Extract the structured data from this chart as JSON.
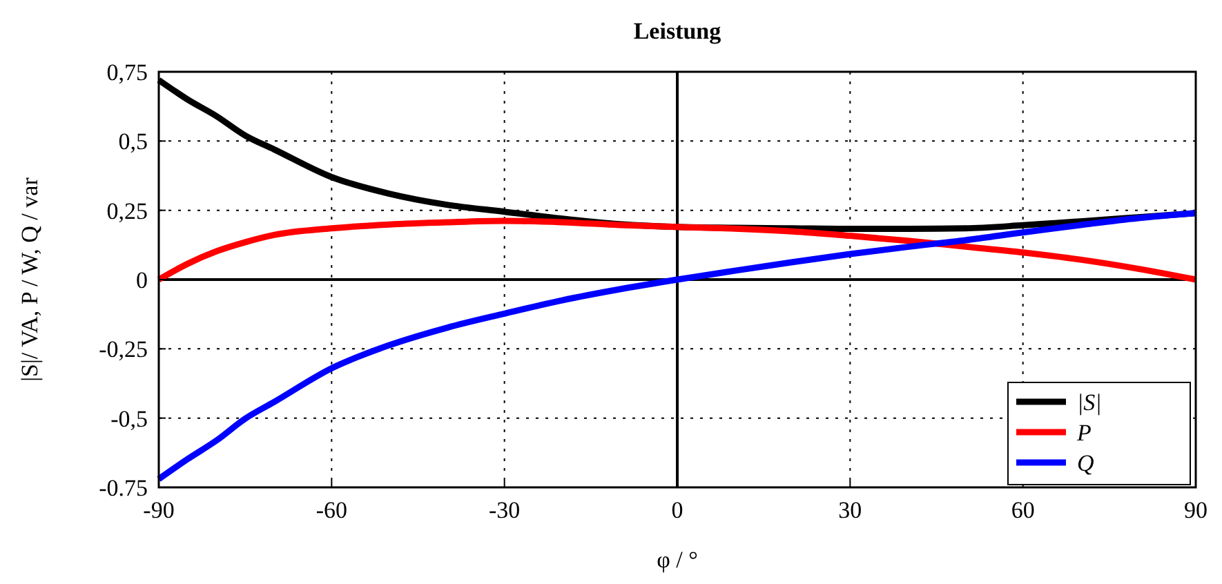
{
  "chart_data": {
    "type": "line",
    "title": "Leistung",
    "xlabel": "φ / °",
    "ylabel": "|S|/ VA,  P / W,  Q / var",
    "x": [
      -90,
      -85,
      -80,
      -75,
      -70,
      -60,
      -50,
      -40,
      -30,
      -20,
      -10,
      0,
      10,
      20,
      30,
      40,
      50,
      60,
      70,
      80,
      90
    ],
    "series": [
      {
        "name": "|S|",
        "color": "#000000",
        "values": [
          0.72,
          0.65,
          0.59,
          0.52,
          0.47,
          0.37,
          0.31,
          0.27,
          0.245,
          0.22,
          0.2,
          0.19,
          0.187,
          0.185,
          0.183,
          0.183,
          0.185,
          0.196,
          0.21,
          0.225,
          0.24
        ]
      },
      {
        "name": "P",
        "color": "#ff0000",
        "values": [
          0,
          0.057,
          0.102,
          0.135,
          0.161,
          0.185,
          0.199,
          0.207,
          0.212,
          0.207,
          0.197,
          0.19,
          0.184,
          0.174,
          0.158,
          0.14,
          0.119,
          0.098,
          0.072,
          0.039,
          0
        ]
      },
      {
        "name": "Q",
        "color": "#0000ff",
        "values": [
          -0.72,
          -0.648,
          -0.581,
          -0.502,
          -0.442,
          -0.32,
          -0.237,
          -0.174,
          -0.123,
          -0.075,
          -0.035,
          0,
          0.032,
          0.063,
          0.092,
          0.118,
          0.142,
          0.17,
          0.197,
          0.222,
          0.24
        ]
      }
    ],
    "xlim": [
      -90,
      90
    ],
    "xticks": [
      -90,
      -60,
      -30,
      0,
      30,
      60,
      90
    ],
    "ylim": [
      -0.75,
      0.75
    ],
    "yticks": [
      {
        "value": -0.75,
        "label": "-0.75"
      },
      {
        "value": -0.5,
        "label": "-0,5"
      },
      {
        "value": -0.25,
        "label": "-0,25"
      },
      0,
      {
        "value": 0.25,
        "label": "0,25"
      },
      {
        "value": 0.5,
        "label": "0,5"
      },
      {
        "value": 0.75,
        "label": "0,75"
      }
    ],
    "grid": true,
    "legend": "bottom right",
    "marker": "none",
    "line_style": "solid"
  }
}
